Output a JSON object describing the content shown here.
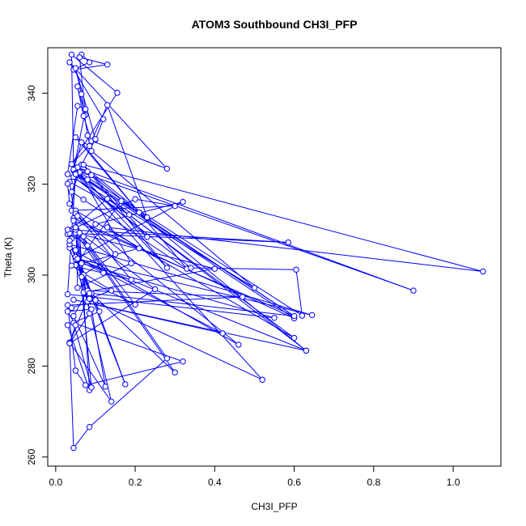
{
  "chart_data": {
    "type": "line",
    "title": "ATOM3 Southbound CH3I_PFP",
    "xlabel": "CH3I_PFP",
    "ylabel": "Theta (K)",
    "xlim": [
      -0.02,
      1.12
    ],
    "ylim": [
      258,
      350
    ],
    "xticks": [
      0.0,
      0.2,
      0.4,
      0.6,
      0.8,
      1.0
    ],
    "xtick_labels": [
      "0.0",
      "0.2",
      "0.4",
      "0.6",
      "0.8",
      "1.0"
    ],
    "yticks": [
      260,
      280,
      300,
      320,
      340
    ],
    "ytick_labels": [
      "260",
      "280",
      "300",
      "320",
      "340"
    ],
    "grid": false,
    "legend": "none",
    "markers": "open circles",
    "color": "#0000ff",
    "series": [
      {
        "x": [
          0.065,
          0.085,
          0.045,
          0.13,
          0.06,
          0.075,
          0.055,
          0.07,
          0.09,
          0.28,
          0.035,
          0.12,
          0.1,
          0.05,
          0.065,
          0.08,
          0.09,
          0.5,
          0.03,
          0.055,
          0.075,
          0.045,
          0.04,
          0.155,
          0.04,
          0.1,
          0.065,
          0.23,
          0.13,
          0.085,
          0.05,
          0.33,
          0.07,
          0.04,
          0.06,
          0.28,
          0.09,
          0.055,
          0.9,
          0.045,
          0.065,
          0.21,
          0.05,
          0.04,
          0.3,
          0.2,
          0.04,
          0.03,
          0.035,
          0.13,
          0.6,
          0.05,
          0.15,
          0.07,
          0.035,
          0.185,
          0.63,
          0.08,
          0.05,
          0.03,
          0.035,
          0.05,
          0.055,
          0.19,
          0.06,
          0.62,
          0.605,
          0.34,
          0.045,
          0.08,
          0.6,
          0.165,
          0.05,
          0.21,
          0.13,
          1.075,
          0.07,
          0.23,
          0.05,
          0.6,
          0.045,
          0.08,
          0.035,
          0.585,
          0.03,
          0.04,
          0.07,
          0.1,
          0.32,
          0.05,
          0.12,
          0.05,
          0.4,
          0.07,
          0.6,
          0.045,
          0.08,
          0.035,
          0.46,
          0.055,
          0.19,
          0.04,
          0.14,
          0.085,
          0.52,
          0.05,
          0.03,
          0.55,
          0.065,
          0.085,
          0.035,
          0.25,
          0.05,
          0.3,
          0.09,
          0.05,
          0.42,
          0.045,
          0.63,
          0.055,
          0.645,
          0.035,
          0.11,
          0.03,
          0.085,
          0.06,
          0.2,
          0.065,
          0.035,
          0.175,
          0.05,
          0.14,
          0.035,
          0.045,
          0.085,
          0.28,
          0.05,
          0.09,
          0.045,
          0.32,
          0.075,
          0.05,
          0.03,
          0.47,
          0.08,
          0.045,
          0.125,
          0.09,
          0.03,
          0.05,
          0.035,
          0.085,
          0.1,
          0.04
        ],
        "y": [
          348.5,
          346.8,
          345.2,
          346.3,
          347.9,
          335.2,
          341.5,
          335.0,
          329.5,
          323.4,
          346.8,
          334.3,
          329.8,
          345.5,
          339.8,
          330.7,
          327.3,
          297.2,
          322.2,
          337.2,
          336.5,
          323.0,
          348.5,
          340.1,
          324.4,
          329.9,
          324.3,
          312.7,
          337.4,
          328.4,
          330.3,
          301.4,
          316.6,
          318.3,
          322.5,
          301.6,
          322.0,
          323.7,
          296.6,
          323.2,
          329.2,
          313.8,
          322.4,
          314.2,
          315.2,
          316.7,
          310.0,
          309.0,
          309.8,
          316.8,
          286.2,
          314.2,
          304.6,
          300.1,
          320.5,
          313.3,
          283.4,
          322.8,
          322.3,
          320.1,
          315.7,
          313.5,
          297.2,
          302.6,
          322.6,
          291.1,
          301.2,
          301.6,
          321.6,
          321.0,
          291.0,
          316.3,
          302.2,
          305.9,
          310.5,
          300.8,
          324.3,
          308.4,
          322.4,
          290.5,
          312.5,
          306.5,
          309.2,
          307.2,
          310.0,
          308.0,
          308.5,
          311.2,
          316.1,
          303.5,
          300.5,
          309.3,
          301.4,
          296.2,
          291.0,
          312.0,
          294.2,
          306.0,
          284.7,
          313.0,
          299.0,
          302.1,
          296.6,
          294.8,
          277.0,
          322.2,
          295.8,
          290.6,
          302.6,
          291.6,
          285.0,
          296.9,
          310.0,
          278.6,
          296.0,
          304.0,
          287.2,
          294.6,
          283.4,
          303.6,
          291.2,
          306.8,
          292.0,
          289.0,
          274.7,
          309.3,
          293.5,
          299.6,
          307.6,
          276.0,
          305.5,
          272.2,
          285.2,
          262.0,
          266.6,
          281.7,
          310.5,
          275.3,
          289.5,
          281.0,
          275.8,
          279.0,
          293.4,
          295.2,
          296.6,
          291.0,
          275.5,
          292.5,
          292.0,
          289.0,
          285.0,
          296.0,
          294.5,
          292.8
        ]
      }
    ]
  }
}
